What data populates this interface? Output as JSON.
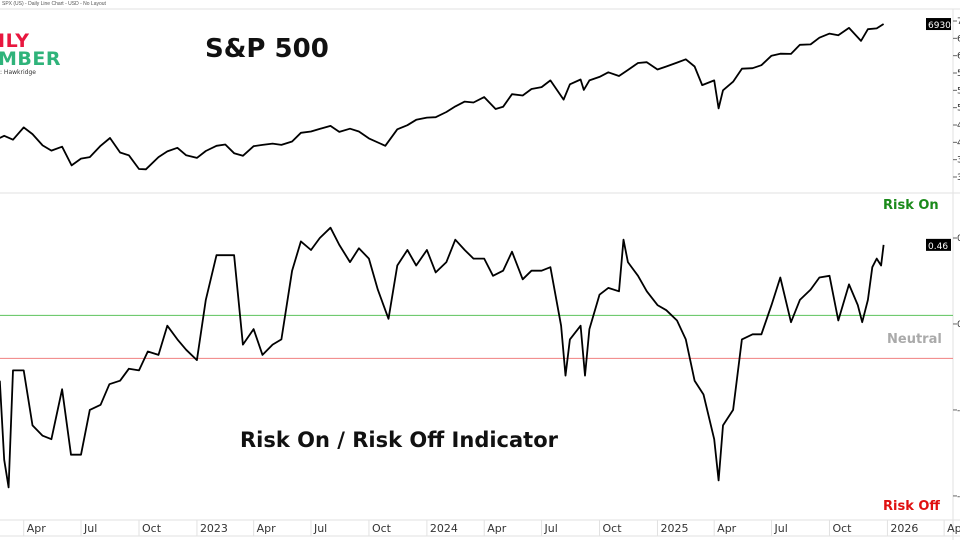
{
  "header": {
    "subtitle": "SPX (US) - Daily Line Chart - USD - No Layout"
  },
  "logo": {
    "line1": "ILY",
    "line2": "MBER",
    "line3": ": Hawkridge"
  },
  "colors": {
    "line": "#000000",
    "risk_on": "#1a8a1a",
    "risk_off": "#e01010",
    "neutral": "#aaaaaa",
    "green_line": "#5cc25c",
    "red_line": "#f08080"
  },
  "x_axis": {
    "ticks": [
      {
        "date": "2022-04-01",
        "label": "Apr"
      },
      {
        "date": "2022-07-01",
        "label": "Jul"
      },
      {
        "date": "2022-10-01",
        "label": "Oct"
      },
      {
        "date": "2023-01-01",
        "label": "2023"
      },
      {
        "date": "2023-04-01",
        "label": "Apr"
      },
      {
        "date": "2023-07-01",
        "label": "Jul"
      },
      {
        "date": "2023-10-01",
        "label": "Oct"
      },
      {
        "date": "2024-01-01",
        "label": "2024"
      },
      {
        "date": "2024-04-01",
        "label": "Apr"
      },
      {
        "date": "2024-07-01",
        "label": "Jul"
      },
      {
        "date": "2024-10-01",
        "label": "Oct"
      },
      {
        "date": "2025-01-01",
        "label": "2025"
      },
      {
        "date": "2025-04-01",
        "label": "Apr"
      },
      {
        "date": "2025-07-01",
        "label": "Jul"
      },
      {
        "date": "2025-10-01",
        "label": "Oct"
      },
      {
        "date": "2026-01-01",
        "label": "2026"
      },
      {
        "date": "2026-04-01",
        "label": "Apr"
      }
    ]
  },
  "chart_data": [
    {
      "type": "line",
      "title": "S&P 500",
      "ylim": [
        3100,
        7300
      ],
      "yticks": [
        3400,
        3800,
        4200,
        4600,
        5000,
        5400,
        5800,
        6200,
        6600,
        7000
      ],
      "last_value": "6930",
      "grid": false,
      "x": [
        "2022-02-22",
        "2022-03-01",
        "2022-03-15",
        "2022-04-01",
        "2022-04-15",
        "2022-05-01",
        "2022-05-15",
        "2022-06-01",
        "2022-06-16",
        "2022-07-01",
        "2022-07-15",
        "2022-08-01",
        "2022-08-16",
        "2022-09-01",
        "2022-09-15",
        "2022-10-01",
        "2022-10-12",
        "2022-11-01",
        "2022-11-15",
        "2022-12-01",
        "2022-12-15",
        "2023-01-01",
        "2023-01-15",
        "2023-02-01",
        "2023-02-15",
        "2023-03-01",
        "2023-03-15",
        "2023-04-01",
        "2023-04-15",
        "2023-05-01",
        "2023-05-15",
        "2023-06-01",
        "2023-06-15",
        "2023-07-01",
        "2023-07-15",
        "2023-08-01",
        "2023-08-15",
        "2023-09-01",
        "2023-09-15",
        "2023-10-01",
        "2023-10-27",
        "2023-11-15",
        "2023-12-01",
        "2023-12-15",
        "2024-01-01",
        "2024-01-15",
        "2024-02-01",
        "2024-02-15",
        "2024-03-01",
        "2024-03-15",
        "2024-04-01",
        "2024-04-19",
        "2024-05-01",
        "2024-05-15",
        "2024-06-01",
        "2024-06-15",
        "2024-07-01",
        "2024-07-15",
        "2024-08-05",
        "2024-08-15",
        "2024-09-01",
        "2024-09-06",
        "2024-09-15",
        "2024-10-01",
        "2024-10-15",
        "2024-11-01",
        "2024-11-15",
        "2024-12-01",
        "2024-12-15",
        "2025-01-01",
        "2025-01-15",
        "2025-02-01",
        "2025-02-15",
        "2025-03-01",
        "2025-03-13",
        "2025-04-01",
        "2025-04-08",
        "2025-04-15",
        "2025-05-01",
        "2025-05-15",
        "2025-06-01",
        "2025-06-15",
        "2025-07-01",
        "2025-07-15",
        "2025-08-01",
        "2025-08-15",
        "2025-09-01",
        "2025-09-15",
        "2025-10-01",
        "2025-10-15",
        "2025-11-01",
        "2025-11-20",
        "2025-12-01",
        "2025-12-15",
        "2025-12-26"
      ],
      "values": [
        4300,
        4350,
        4260,
        4545,
        4390,
        4130,
        4010,
        4100,
        3667,
        3825,
        3860,
        4120,
        4300,
        3965,
        3900,
        3585,
        3577,
        3860,
        3990,
        4075,
        3900,
        3840,
        4000,
        4120,
        4150,
        3950,
        3890,
        4110,
        4140,
        4170,
        4140,
        4220,
        4420,
        4450,
        4510,
        4580,
        4440,
        4515,
        4450,
        4290,
        4120,
        4500,
        4595,
        4720,
        4770,
        4780,
        4900,
        5030,
        5140,
        5120,
        5245,
        4970,
        5020,
        5310,
        5280,
        5430,
        5475,
        5630,
        5186,
        5540,
        5650,
        5410,
        5630,
        5710,
        5815,
        5730,
        5870,
        6030,
        6050,
        5880,
        5950,
        6040,
        6115,
        5950,
        5520,
        5630,
        4982,
        5400,
        5600,
        5900,
        5910,
        5980,
        6200,
        6245,
        6240,
        6450,
        6460,
        6615,
        6710,
        6670,
        6840,
        6540,
        6810,
        6830,
        6930
      ]
    },
    {
      "type": "line",
      "title": "Risk On / Risk Off Indicator",
      "ylim": [
        -1.14,
        0.75
      ],
      "yticks": [
        0.5,
        0,
        -0.5,
        -1.0
      ],
      "last_value": "0.46",
      "reference_lines": [
        {
          "value": 0.05,
          "color": "#5cc25c"
        },
        {
          "value": -0.2,
          "color": "#f08080"
        }
      ],
      "zone_labels": {
        "top": "Risk On",
        "middle": "Neutral",
        "bottom": "Risk Off"
      },
      "grid": false,
      "x": [
        "2022-02-22",
        "2022-03-01",
        "2022-03-08",
        "2022-03-15",
        "2022-04-01",
        "2022-04-15",
        "2022-05-01",
        "2022-05-15",
        "2022-06-01",
        "2022-06-15",
        "2022-07-01",
        "2022-07-15",
        "2022-08-01",
        "2022-08-15",
        "2022-09-01",
        "2022-09-15",
        "2022-10-01",
        "2022-10-15",
        "2022-11-01",
        "2022-11-15",
        "2022-12-01",
        "2022-12-15",
        "2023-01-01",
        "2023-01-15",
        "2023-02-01",
        "2023-02-15",
        "2023-03-01",
        "2023-03-08",
        "2023-03-15",
        "2023-04-01",
        "2023-04-15",
        "2023-05-01",
        "2023-05-15",
        "2023-06-01",
        "2023-06-15",
        "2023-07-01",
        "2023-07-15",
        "2023-08-01",
        "2023-08-15",
        "2023-09-01",
        "2023-09-15",
        "2023-10-01",
        "2023-10-15",
        "2023-11-01",
        "2023-11-15",
        "2023-12-01",
        "2023-12-15",
        "2024-01-01",
        "2024-01-15",
        "2024-02-01",
        "2024-02-15",
        "2024-03-01",
        "2024-03-15",
        "2024-04-01",
        "2024-04-15",
        "2024-05-01",
        "2024-05-15",
        "2024-06-01",
        "2024-06-15",
        "2024-07-01",
        "2024-07-15",
        "2024-08-01",
        "2024-08-08",
        "2024-08-15",
        "2024-09-01",
        "2024-09-08",
        "2024-09-15",
        "2024-10-01",
        "2024-10-15",
        "2024-11-01",
        "2024-11-08",
        "2024-11-15",
        "2024-12-01",
        "2024-12-15",
        "2025-01-01",
        "2025-01-15",
        "2025-02-01",
        "2025-02-15",
        "2025-03-01",
        "2025-03-15",
        "2025-04-01",
        "2025-04-08",
        "2025-04-15",
        "2025-05-01",
        "2025-05-15",
        "2025-06-01",
        "2025-06-15",
        "2025-07-01",
        "2025-07-15",
        "2025-08-01",
        "2025-08-15",
        "2025-09-01",
        "2025-09-15",
        "2025-10-01",
        "2025-10-15",
        "2025-11-01",
        "2025-11-15",
        "2025-11-22",
        "2025-12-01",
        "2025-12-08",
        "2025-12-15",
        "2025-12-22",
        "2025-12-26"
      ],
      "values": [
        -0.33,
        -0.79,
        -0.95,
        -0.27,
        -0.27,
        -0.59,
        -0.65,
        -0.67,
        -0.38,
        -0.76,
        -0.76,
        -0.5,
        -0.47,
        -0.35,
        -0.33,
        -0.26,
        -0.27,
        -0.16,
        -0.18,
        -0.01,
        -0.09,
        -0.15,
        -0.21,
        0.14,
        0.4,
        0.4,
        0.4,
        0.14,
        -0.12,
        -0.03,
        -0.18,
        -0.12,
        -0.09,
        0.31,
        0.48,
        0.43,
        0.5,
        0.56,
        0.46,
        0.36,
        0.44,
        0.38,
        0.2,
        0.03,
        0.34,
        0.43,
        0.34,
        0.43,
        0.3,
        0.36,
        0.49,
        0.43,
        0.38,
        0.38,
        0.28,
        0.31,
        0.42,
        0.26,
        0.31,
        0.31,
        0.33,
        -0.01,
        -0.3,
        -0.09,
        -0.01,
        -0.3,
        -0.03,
        0.17,
        0.21,
        0.19,
        0.49,
        0.36,
        0.28,
        0.19,
        0.11,
        0.08,
        0.02,
        -0.09,
        -0.33,
        -0.41,
        -0.67,
        -0.91,
        -0.59,
        -0.5,
        -0.09,
        -0.06,
        -0.06,
        0.11,
        0.27,
        0.01,
        0.14,
        0.2,
        0.27,
        0.28,
        0.02,
        0.23,
        0.11,
        0.01,
        0.14,
        0.33,
        0.38,
        0.34,
        0.46
      ]
    }
  ]
}
